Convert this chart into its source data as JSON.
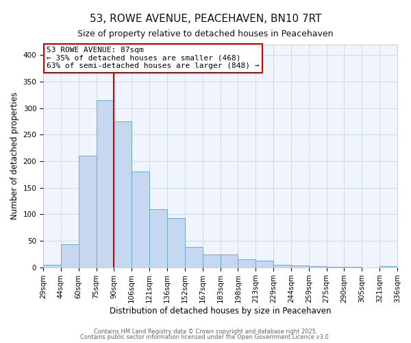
{
  "title": "53, ROWE AVENUE, PEACEHAVEN, BN10 7RT",
  "subtitle": "Size of property relative to detached houses in Peacehaven",
  "xlabel": "Distribution of detached houses by size in Peacehaven",
  "ylabel": "Number of detached properties",
  "bin_labels": [
    "29sqm",
    "44sqm",
    "60sqm",
    "75sqm",
    "90sqm",
    "106sqm",
    "121sqm",
    "136sqm",
    "152sqm",
    "167sqm",
    "183sqm",
    "198sqm",
    "213sqm",
    "229sqm",
    "244sqm",
    "259sqm",
    "275sqm",
    "290sqm",
    "305sqm",
    "321sqm",
    "336sqm"
  ],
  "bar_values": [
    5,
    43,
    210,
    315,
    275,
    180,
    110,
    92,
    38,
    24,
    24,
    15,
    12,
    5,
    3,
    2,
    1,
    1,
    0,
    2
  ],
  "bar_color": "#c5d8f0",
  "bar_edge_color": "#6aaad4",
  "vline_x_index": 4,
  "vline_color": "#cc0000",
  "ylim": [
    0,
    420
  ],
  "yticks": [
    0,
    50,
    100,
    150,
    200,
    250,
    300,
    350,
    400
  ],
  "annotation_title": "53 ROWE AVENUE: 87sqm",
  "annotation_line1": "← 35% of detached houses are smaller (468)",
  "annotation_line2": "63% of semi-detached houses are larger (848) →",
  "footer1": "Contains HM Land Registry data © Crown copyright and database right 2025.",
  "footer2": "Contains public sector information licensed under the Open Government Licence v3.0.",
  "background_color": "#ffffff",
  "plot_bg_color": "#f0f4fc",
  "grid_color": "#c8d4e8",
  "title_fontsize": 11,
  "subtitle_fontsize": 9,
  "axis_label_fontsize": 8.5,
  "tick_fontsize": 7.5,
  "annotation_fontsize": 8,
  "footer_fontsize": 6
}
